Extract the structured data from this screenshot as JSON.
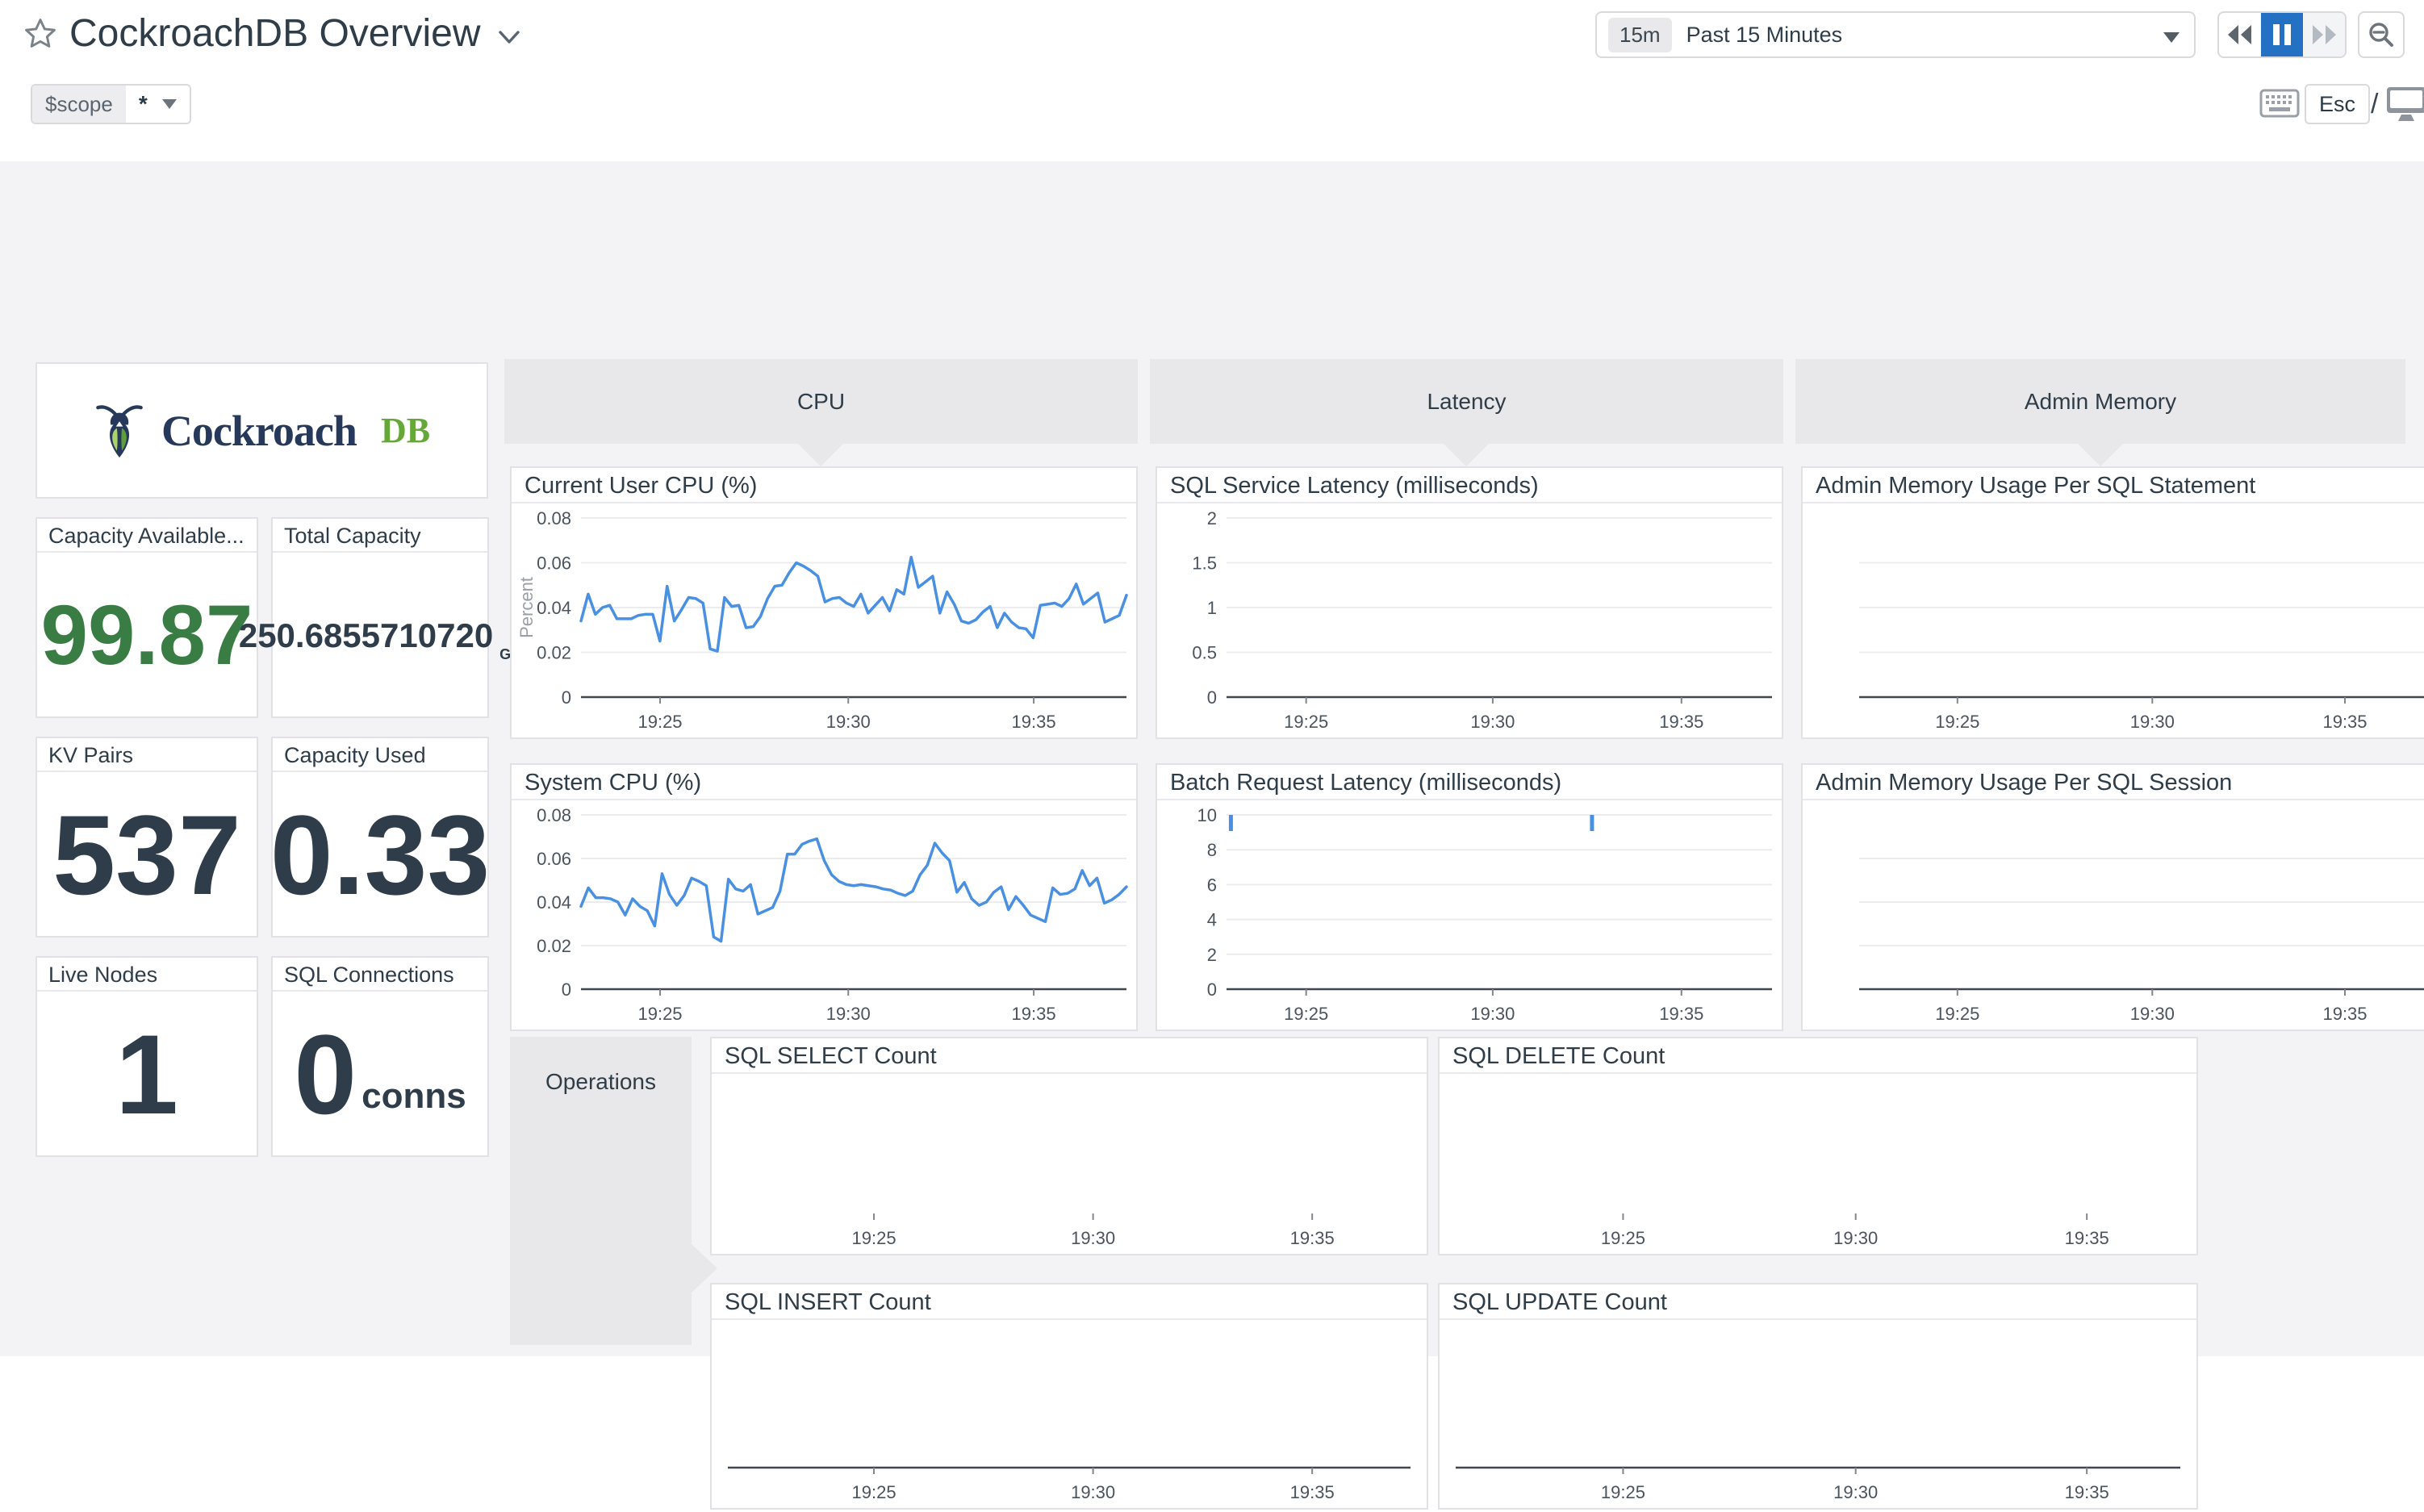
{
  "header": {
    "title": "CockroachDB Overview",
    "time_badge": "15m",
    "time_label": "Past 15 Minutes",
    "esc_key": "Esc",
    "slash": "/"
  },
  "scope": {
    "name": "$scope",
    "value": "*"
  },
  "logo": {
    "word": "Cockroach",
    "db": "DB"
  },
  "stats": [
    {
      "title": "Capacity Available...",
      "value": "99.87"
    },
    {
      "title": "Total Capacity",
      "value": "250.6855710720",
      "unit": "GB"
    },
    {
      "title": "KV Pairs",
      "value": "537"
    },
    {
      "title": "Capacity Used",
      "value": "0.33"
    },
    {
      "title": "Live Nodes",
      "value": "1"
    },
    {
      "title": "SQL Connections",
      "value": "0",
      "unit": "conns"
    }
  ],
  "groups": {
    "cpu": "CPU",
    "latency": "Latency",
    "admin": "Admin Memory",
    "operations": "Operations"
  },
  "colors": {
    "accent_blue": "#4a90e2",
    "pause_blue": "#2470c2",
    "value_green": "#3a7d44",
    "logo_navy": "#27395a",
    "logo_green": "#65a838"
  },
  "chart_data": {
    "user_cpu": {
      "type": "line",
      "title": "Current User CPU (%)",
      "ylabel": "Percent",
      "ymax": 0.08,
      "ml": 86,
      "mr": 12,
      "grid": true,
      "axis": "dark",
      "yticks": [
        {
          "v": 0,
          "label": "0"
        },
        {
          "v": 0.02,
          "label": "0.02"
        },
        {
          "v": 0.04,
          "label": "0.04"
        },
        {
          "v": 0.06,
          "label": "0.06"
        },
        {
          "v": 0.08,
          "label": "0.08"
        }
      ],
      "xticks": [
        {
          "f": 0.145,
          "label": "19:25"
        },
        {
          "f": 0.49,
          "label": "19:30"
        },
        {
          "f": 0.83,
          "label": "19:35"
        }
      ],
      "values": [
        0.034,
        0.046,
        0.037,
        0.04,
        0.041,
        0.035,
        0.035,
        0.035,
        0.0365,
        0.037,
        0.037,
        0.025,
        0.0495,
        0.034,
        0.039,
        0.0445,
        0.044,
        0.042,
        0.0215,
        0.0205,
        0.0445,
        0.0405,
        0.041,
        0.031,
        0.0315,
        0.036,
        0.044,
        0.0495,
        0.05,
        0.0555,
        0.06,
        0.0585,
        0.0565,
        0.054,
        0.0425,
        0.044,
        0.0445,
        0.042,
        0.0405,
        0.046,
        0.0375,
        0.041,
        0.0445,
        0.0385,
        0.048,
        0.046,
        0.0625,
        0.049,
        0.0515,
        0.054,
        0.0375,
        0.047,
        0.0415,
        0.034,
        0.033,
        0.0345,
        0.038,
        0.0405,
        0.031,
        0.0375,
        0.0335,
        0.031,
        0.0305,
        0.0265,
        0.041,
        0.0415,
        0.042,
        0.0405,
        0.044,
        0.0505,
        0.0415,
        0.044,
        0.0465,
        0.0335,
        0.035,
        0.0365,
        0.0455
      ]
    },
    "system_cpu": {
      "type": "line",
      "title": "System CPU (%)",
      "ymax": 0.08,
      "ml": 86,
      "mr": 12,
      "grid": true,
      "axis": "dark",
      "yticks": [
        {
          "v": 0,
          "label": "0"
        },
        {
          "v": 0.02,
          "label": "0.02"
        },
        {
          "v": 0.04,
          "label": "0.04"
        },
        {
          "v": 0.06,
          "label": "0.06"
        },
        {
          "v": 0.08,
          "label": "0.08"
        }
      ],
      "xticks": [
        {
          "f": 0.145,
          "label": "19:25"
        },
        {
          "f": 0.49,
          "label": "19:30"
        },
        {
          "f": 0.83,
          "label": "19:35"
        }
      ],
      "values": [
        0.038,
        0.0465,
        0.042,
        0.042,
        0.0415,
        0.04,
        0.034,
        0.0415,
        0.038,
        0.036,
        0.029,
        0.053,
        0.0435,
        0.0385,
        0.043,
        0.051,
        0.0495,
        0.0475,
        0.024,
        0.022,
        0.0505,
        0.046,
        0.045,
        0.048,
        0.0345,
        0.036,
        0.0375,
        0.045,
        0.062,
        0.062,
        0.0665,
        0.068,
        0.069,
        0.059,
        0.0525,
        0.0495,
        0.048,
        0.0475,
        0.048,
        0.0475,
        0.047,
        0.046,
        0.0455,
        0.044,
        0.043,
        0.045,
        0.0525,
        0.057,
        0.067,
        0.0625,
        0.059,
        0.0445,
        0.049,
        0.0415,
        0.0385,
        0.04,
        0.0445,
        0.047,
        0.0365,
        0.0425,
        0.0385,
        0.034,
        0.0325,
        0.031,
        0.0465,
        0.0435,
        0.044,
        0.046,
        0.0545,
        0.0475,
        0.051,
        0.0395,
        0.041,
        0.0435,
        0.047
      ]
    },
    "sql_service_latency": {
      "type": "line",
      "title": "SQL Service Latency (milliseconds)",
      "ymax": 2,
      "ml": 86,
      "mr": 12,
      "grid": true,
      "axis": "dark",
      "yticks": [
        {
          "v": 0,
          "label": "0"
        },
        {
          "v": 0.5,
          "label": "0.5"
        },
        {
          "v": 1,
          "label": "1"
        },
        {
          "v": 1.5,
          "label": "1.5"
        },
        {
          "v": 2,
          "label": "2"
        }
      ],
      "xticks": [
        {
          "f": 0.146,
          "label": "19:25"
        },
        {
          "f": 0.488,
          "label": "19:30"
        },
        {
          "f": 0.834,
          "label": "19:35"
        }
      ]
    },
    "batch_latency": {
      "type": "line",
      "title": "Batch Request Latency (milliseconds)",
      "ymax": 10,
      "ml": 86,
      "mr": 12,
      "grid": true,
      "axis": "dark",
      "yticks": [
        {
          "v": 0,
          "label": "0"
        },
        {
          "v": 2,
          "label": "2"
        },
        {
          "v": 4,
          "label": "4"
        },
        {
          "v": 6,
          "label": "6"
        },
        {
          "v": 8,
          "label": "8"
        },
        {
          "v": 10,
          "label": "10"
        }
      ],
      "xticks": [
        {
          "f": 0.146,
          "label": "19:25"
        },
        {
          "f": 0.488,
          "label": "19:30"
        },
        {
          "f": 0.834,
          "label": "19:35"
        }
      ],
      "spikes": [
        0.008,
        0.67
      ],
      "spike_value": 10
    },
    "admin_stmt": {
      "type": "line",
      "title": "Admin Memory Usage Per SQL Statement",
      "ymax": 1,
      "ml": 70,
      "mr": 0,
      "axis": "dark",
      "gridfracs": [
        0.25,
        0.5,
        0.75
      ],
      "xticks": [
        {
          "f": 0.174,
          "label": "19:25"
        },
        {
          "f": 0.519,
          "label": "19:30"
        },
        {
          "f": 0.86,
          "label": "19:35"
        }
      ]
    },
    "admin_session": {
      "type": "line",
      "title": "Admin Memory Usage Per SQL Session",
      "ymax": 1,
      "ml": 70,
      "mr": 0,
      "axis": "dark",
      "gridfracs": [
        0.25,
        0.5,
        0.75
      ],
      "xticks": [
        {
          "f": 0.174,
          "label": "19:25"
        },
        {
          "f": 0.519,
          "label": "19:30"
        },
        {
          "f": 0.86,
          "label": "19:35"
        }
      ]
    },
    "select_count": {
      "type": "line",
      "title": "SQL SELECT Count",
      "ymax": 1,
      "ml": 20,
      "mr": 20,
      "axis": "none",
      "xticks": [
        {
          "f": 0.214,
          "label": "19:25"
        },
        {
          "f": 0.535,
          "label": "19:30"
        },
        {
          "f": 0.856,
          "label": "19:35"
        }
      ]
    },
    "delete_count": {
      "type": "line",
      "title": "SQL DELETE Count",
      "ymax": 1,
      "ml": 20,
      "mr": 20,
      "axis": "none",
      "xticks": [
        {
          "f": 0.231,
          "label": "19:25"
        },
        {
          "f": 0.552,
          "label": "19:30"
        },
        {
          "f": 0.871,
          "label": "19:35"
        }
      ]
    },
    "insert_count": {
      "type": "line",
      "title": "SQL INSERT Count",
      "ymax": 1,
      "ml": 20,
      "mr": 20,
      "axis": "dark",
      "xticks": [
        {
          "f": 0.214,
          "label": "19:25"
        },
        {
          "f": 0.535,
          "label": "19:30"
        },
        {
          "f": 0.856,
          "label": "19:35"
        }
      ]
    },
    "update_count": {
      "type": "line",
      "title": "SQL UPDATE Count",
      "ymax": 1,
      "ml": 20,
      "mr": 20,
      "axis": "dark",
      "xticks": [
        {
          "f": 0.231,
          "label": "19:25"
        },
        {
          "f": 0.552,
          "label": "19:30"
        },
        {
          "f": 0.871,
          "label": "19:35"
        }
      ]
    }
  }
}
